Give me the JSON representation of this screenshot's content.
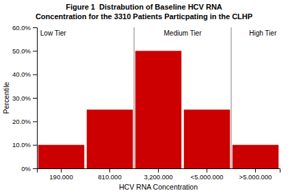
{
  "chart_data": {
    "type": "bar",
    "title": "Figure 1  Distrabution of Baseline HCV RNA",
    "subtitle": "Concentration for the 3310 Patients Particpating in the CLHP",
    "x_label": "HCV RNA Concentration",
    "y_label": "Percentile",
    "categories": [
      "190.000",
      "810.000",
      "3,200.000",
      "<5.000.000",
      ">5.000.000"
    ],
    "values": [
      10,
      25,
      50,
      25,
      10
    ],
    "color": "#CC0000",
    "ylim": [
      0,
      60
    ],
    "yticks": [
      {
        "value": 0,
        "label": "0%"
      },
      {
        "value": 10,
        "label": "10.0%"
      },
      {
        "value": 20,
        "label": "20.0%"
      },
      {
        "value": 30,
        "label": "30.0%"
      },
      {
        "value": 40,
        "label": "40.0%"
      },
      {
        "value": 50,
        "label": "50.0%"
      },
      {
        "value": 60,
        "label": "60.0%"
      }
    ],
    "grid": false,
    "annotations": [
      {
        "text": "Low Tier",
        "categories": [
          "190.000",
          "810.000"
        ]
      },
      {
        "text": "Medium Tier",
        "categories": [
          "3,200.000",
          "<5.000.000"
        ]
      },
      {
        "text": "High Tier",
        "categories": [
          ">5.000.000"
        ]
      }
    ]
  }
}
